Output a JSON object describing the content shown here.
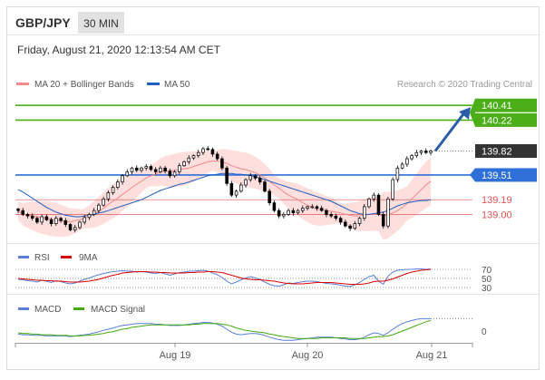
{
  "header": {
    "pair": "GBP/JPY",
    "timeframe": "30 MIN"
  },
  "timestamp": "Friday, August 21, 2020 12:13:54 AM CET",
  "credit": "Research © 2020 Trading Central",
  "colors": {
    "candle": "#000000",
    "bb_fill": "#ffd3d3",
    "ma20": "#f28b8b",
    "ma50": "#1f5fbf",
    "resistance": "#4caf1a",
    "support_blue": "#2f6fd8",
    "support_red": "#e05050",
    "current": "#333333",
    "arrow": "#2a5caa",
    "rsi": "#5b7fd6",
    "rsi_ma": "#dd0000",
    "macd": "#5b7fd6",
    "macd_signal": "#44aa11"
  },
  "chart_data": [
    {
      "type": "line",
      "subtype": "candlestick",
      "title": "GBP/JPY",
      "x_ticks": [
        "Aug 19",
        "Aug 20",
        "Aug 21"
      ],
      "ylim": [
        138.7,
        140.6
      ],
      "legend": [
        "MA 20 + Bollinger Bands",
        "MA 50"
      ],
      "levels": [
        {
          "value": 140.41,
          "label": "140.41",
          "style": "resistance"
        },
        {
          "value": 140.22,
          "label": "140.22",
          "style": "resistance"
        },
        {
          "value": 139.82,
          "label": "139.82",
          "style": "current"
        },
        {
          "value": 139.51,
          "label": "139.51",
          "style": "support_blue"
        },
        {
          "value": 139.19,
          "label": "139.19",
          "style": "support_red"
        },
        {
          "value": 139.0,
          "label": "139.00",
          "style": "support_red"
        }
      ],
      "series": [
        {
          "name": "Price",
          "values": [
            139.05,
            139.0,
            138.98,
            138.95,
            138.9,
            138.97,
            138.93,
            138.88,
            138.95,
            138.92,
            138.87,
            138.8,
            138.83,
            138.9,
            138.96,
            139.0,
            139.05,
            139.12,
            139.2,
            139.28,
            139.35,
            139.42,
            139.5,
            139.55,
            139.6,
            139.57,
            139.6,
            139.62,
            139.58,
            139.55,
            139.6,
            139.56,
            139.5,
            139.55,
            139.63,
            139.68,
            139.73,
            139.76,
            139.8,
            139.85,
            139.84,
            139.78,
            139.72,
            139.6,
            139.4,
            139.25,
            139.3,
            139.38,
            139.45,
            139.5,
            139.47,
            139.42,
            139.3,
            139.15,
            139.05,
            138.98,
            139.0,
            139.05,
            139.02,
            139.05,
            139.08,
            139.1,
            139.1,
            139.08,
            139.05,
            139.0,
            138.98,
            138.95,
            138.9,
            138.85,
            138.82,
            138.88,
            138.95,
            139.1,
            139.2,
            139.25,
            139.0,
            138.85,
            139.2,
            139.45,
            139.6,
            139.65,
            139.72,
            139.76,
            139.8,
            139.82,
            139.8,
            139.82
          ]
        },
        {
          "name": "MA 20",
          "values": [
            139.05,
            139.0,
            138.99,
            138.98,
            138.97,
            138.96,
            138.95,
            138.94,
            138.93,
            138.92,
            138.91,
            138.9,
            138.92,
            138.93,
            138.95,
            138.97,
            139.0,
            139.04,
            139.08,
            139.13,
            139.17,
            139.21,
            139.26,
            139.3,
            139.35,
            139.39,
            139.43,
            139.47,
            139.5,
            139.52,
            139.55,
            139.56,
            139.56,
            139.57,
            139.58,
            139.59,
            139.6,
            139.62,
            139.64,
            139.66,
            139.68,
            139.69,
            139.69,
            139.68,
            139.66,
            139.63,
            139.61,
            139.59,
            139.58,
            139.56,
            139.54,
            139.51,
            139.47,
            139.43,
            139.38,
            139.34,
            139.29,
            139.25,
            139.22,
            139.19,
            139.15,
            139.12,
            139.09,
            139.07,
            139.06,
            139.05,
            139.04,
            139.03,
            139.02,
            139.0,
            138.99,
            138.98,
            138.98,
            138.99,
            139.0,
            139.01,
            139.0,
            138.98,
            138.99,
            139.02,
            139.05,
            139.09,
            139.14,
            139.2,
            139.26,
            139.32,
            139.38,
            139.43
          ]
        },
        {
          "name": "MA 50",
          "values": [
            139.32,
            139.29,
            139.25,
            139.21,
            139.17,
            139.13,
            139.09,
            139.06,
            139.03,
            139.01,
            138.99,
            138.98,
            138.97,
            138.97,
            138.98,
            138.99,
            139.0,
            139.02,
            139.03,
            139.05,
            139.07,
            139.09,
            139.11,
            139.13,
            139.15,
            139.17,
            139.19,
            139.22,
            139.25,
            139.28,
            139.31,
            139.33,
            139.35,
            139.37,
            139.39,
            139.4,
            139.42,
            139.44,
            139.46,
            139.48,
            139.5,
            139.51,
            139.52,
            139.53,
            139.53,
            139.53,
            139.52,
            139.52,
            139.51,
            139.5,
            139.49,
            139.47,
            139.45,
            139.43,
            139.41,
            139.39,
            139.37,
            139.35,
            139.33,
            139.31,
            139.29,
            139.27,
            139.25,
            139.23,
            139.21,
            139.19,
            139.17,
            139.14,
            139.11,
            139.08,
            139.05,
            139.03,
            139.01,
            139.0,
            139.0,
            139.01,
            139.02,
            139.03,
            139.05,
            139.08,
            139.11,
            139.13,
            139.15,
            139.16,
            139.17,
            139.18,
            139.18,
            139.19
          ]
        }
      ]
    },
    {
      "type": "line",
      "title": "RSI",
      "ylim": [
        20,
        80
      ],
      "y_ticks": [
        70,
        50,
        30
      ],
      "series": [
        {
          "name": "RSI",
          "values": [
            48,
            47,
            45,
            44,
            42,
            46,
            44,
            41,
            45,
            43,
            40,
            38,
            40,
            44,
            48,
            51,
            55,
            58,
            61,
            63,
            65,
            66,
            67,
            66,
            66,
            64,
            65,
            64,
            62,
            61,
            63,
            60,
            57,
            60,
            63,
            64,
            66,
            66,
            67,
            68,
            66,
            62,
            58,
            52,
            44,
            38,
            42,
            47,
            51,
            54,
            51,
            48,
            42,
            37,
            34,
            33,
            36,
            40,
            39,
            41,
            43,
            44,
            44,
            43,
            41,
            39,
            38,
            37,
            35,
            33,
            32,
            36,
            41,
            48,
            54,
            57,
            44,
            37,
            55,
            64,
            68,
            69,
            70,
            70,
            71,
            71,
            70,
            71
          ]
        },
        {
          "name": "9MA",
          "values": [
            50,
            49,
            48,
            47,
            46,
            46,
            45,
            45,
            44,
            44,
            43,
            42,
            42,
            42,
            43,
            44,
            46,
            48,
            51,
            54,
            57,
            59,
            62,
            63,
            64,
            65,
            65,
            65,
            64,
            64,
            63,
            63,
            62,
            62,
            62,
            62,
            63,
            63,
            64,
            64,
            65,
            65,
            64,
            63,
            60,
            57,
            54,
            51,
            49,
            48,
            47,
            47,
            46,
            45,
            44,
            42,
            40,
            39,
            38,
            38,
            38,
            39,
            40,
            41,
            41,
            41,
            41,
            40,
            39,
            38,
            37,
            37,
            37,
            38,
            40,
            43,
            44,
            44,
            46,
            49,
            53,
            57,
            61,
            64,
            66,
            68,
            69,
            70
          ]
        }
      ]
    },
    {
      "type": "line",
      "title": "MACD",
      "ylim": [
        -0.25,
        0.25
      ],
      "y_ticks": [
        0
      ],
      "series": [
        {
          "name": "MACD",
          "values": [
            -0.05,
            -0.06,
            -0.06,
            -0.07,
            -0.07,
            -0.07,
            -0.08,
            -0.08,
            -0.08,
            -0.08,
            -0.08,
            -0.09,
            -0.08,
            -0.07,
            -0.06,
            -0.05,
            -0.03,
            -0.01,
            0.01,
            0.03,
            0.05,
            0.07,
            0.09,
            0.1,
            0.11,
            0.12,
            0.12,
            0.12,
            0.12,
            0.11,
            0.11,
            0.1,
            0.09,
            0.09,
            0.09,
            0.1,
            0.11,
            0.12,
            0.13,
            0.14,
            0.14,
            0.13,
            0.11,
            0.08,
            0.03,
            -0.02,
            -0.05,
            -0.06,
            -0.05,
            -0.04,
            -0.04,
            -0.05,
            -0.07,
            -0.1,
            -0.12,
            -0.14,
            -0.15,
            -0.15,
            -0.15,
            -0.14,
            -0.13,
            -0.12,
            -0.11,
            -0.1,
            -0.1,
            -0.1,
            -0.1,
            -0.11,
            -0.12,
            -0.13,
            -0.14,
            -0.14,
            -0.13,
            -0.1,
            -0.06,
            -0.03,
            -0.04,
            -0.07,
            -0.03,
            0.03,
            0.08,
            0.12,
            0.15,
            0.17,
            0.19,
            0.2,
            0.2,
            0.2
          ]
        },
        {
          "name": "MACD Signal",
          "values": [
            -0.03,
            -0.04,
            -0.04,
            -0.05,
            -0.05,
            -0.06,
            -0.06,
            -0.06,
            -0.07,
            -0.07,
            -0.07,
            -0.08,
            -0.08,
            -0.08,
            -0.07,
            -0.07,
            -0.06,
            -0.05,
            -0.04,
            -0.02,
            -0.01,
            0.01,
            0.03,
            0.04,
            0.06,
            0.07,
            0.08,
            0.09,
            0.1,
            0.1,
            0.1,
            0.1,
            0.1,
            0.1,
            0.1,
            0.1,
            0.1,
            0.11,
            0.11,
            0.12,
            0.12,
            0.12,
            0.12,
            0.11,
            0.1,
            0.08,
            0.05,
            0.03,
            0.01,
            0.0,
            -0.01,
            -0.02,
            -0.03,
            -0.05,
            -0.06,
            -0.08,
            -0.09,
            -0.1,
            -0.11,
            -0.12,
            -0.12,
            -0.12,
            -0.12,
            -0.12,
            -0.11,
            -0.11,
            -0.11,
            -0.11,
            -0.11,
            -0.11,
            -0.12,
            -0.12,
            -0.12,
            -0.12,
            -0.11,
            -0.1,
            -0.09,
            -0.09,
            -0.08,
            -0.06,
            -0.03,
            0.0,
            0.03,
            0.06,
            0.09,
            0.12,
            0.15,
            0.17
          ]
        }
      ]
    }
  ]
}
